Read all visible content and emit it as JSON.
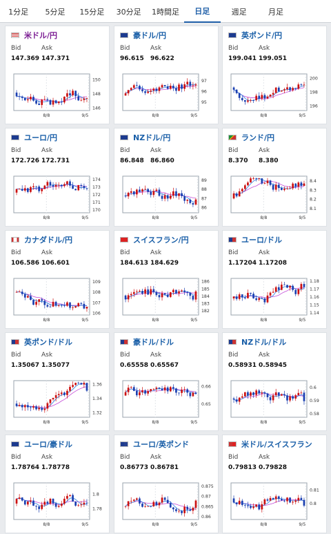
{
  "tabs": [
    "1分足",
    "5分足",
    "15分足",
    "30分足",
    "1時間足",
    "日足",
    "週足",
    "月足"
  ],
  "active_tab": 5,
  "labels": {
    "bid": "Bid",
    "ask": "Ask"
  },
  "colors": {
    "up": "#cc1111",
    "down": "#1b3fb0",
    "ma_fast": "#2a7de1",
    "ma_slow": "#c44bd8",
    "accent": "#1a5fa8",
    "highlight": "#7b1d93"
  },
  "cards": [
    {
      "name": "米ドル/円",
      "flag": "us-flag",
      "bid": "147.369",
      "ask": "147.371",
      "highlight": true,
      "chart_data": {
        "type": "candlestick",
        "y_ticks": [
          "150",
          "148",
          "146"
        ],
        "y_values": [
          150,
          148,
          146
        ],
        "ylim": [
          145.6,
          150.8
        ],
        "x_ticks": [
          "8/8",
          "9/5"
        ],
        "last": 147.37
      }
    },
    {
      "name": "豪ドル/円",
      "flag": "au-flag",
      "bid": "96.615",
      "ask": "96.622",
      "highlight": false,
      "chart_data": {
        "type": "candlestick",
        "y_ticks": [
          "97",
          "96",
          "95"
        ],
        "y_values": [
          97,
          96,
          95
        ],
        "ylim": [
          94.2,
          97.6
        ],
        "x_ticks": [
          "8/8",
          "9/5"
        ],
        "last": 96.62
      }
    },
    {
      "name": "英ポンド/円",
      "flag": "uk-flag",
      "bid": "199.041",
      "ask": "199.051",
      "highlight": false,
      "chart_data": {
        "type": "candlestick",
        "y_ticks": [
          "200",
          "198",
          "196"
        ],
        "y_values": [
          200,
          198,
          196
        ],
        "ylim": [
          195.3,
          200.6
        ],
        "x_ticks": [
          "8/8",
          "9/5"
        ],
        "last": 199.05
      }
    },
    {
      "name": "ユーロ/円",
      "flag": "eu-flag",
      "bid": "172.726",
      "ask": "172.731",
      "highlight": false,
      "chart_data": {
        "type": "candlestick",
        "y_ticks": [
          "174",
          "173",
          "172",
          "171",
          "170"
        ],
        "y_values": [
          174,
          173,
          172,
          171,
          170
        ],
        "ylim": [
          169.6,
          174.4
        ],
        "x_ticks": [
          "8/8",
          "9/5"
        ],
        "last": 172.73
      }
    },
    {
      "name": "NZドル/円",
      "flag": "nz-flag",
      "bid": "86.848",
      "ask": "86.860",
      "highlight": false,
      "chart_data": {
        "type": "candlestick",
        "y_ticks": [
          "89",
          "88",
          "87",
          "86"
        ],
        "y_values": [
          89,
          88,
          87,
          86
        ],
        "ylim": [
          85.4,
          89.4
        ],
        "x_ticks": [
          "8/8",
          "9/5"
        ],
        "last": 86.85
      }
    },
    {
      "name": "ランド/円",
      "flag": "za-flag",
      "bid": "8.370",
      "ask": "8.380",
      "highlight": false,
      "chart_data": {
        "type": "candlestick",
        "y_ticks": [
          "8.4",
          "8.3",
          "8.2",
          "8.1"
        ],
        "y_values": [
          8.4,
          8.3,
          8.2,
          8.1
        ],
        "ylim": [
          8.05,
          8.45
        ],
        "x_ticks": [
          "8/8",
          "9/5"
        ],
        "last": 8.37
      }
    },
    {
      "name": "カナダドル/円",
      "flag": "ca-flag",
      "bid": "106.586",
      "ask": "106.601",
      "highlight": false,
      "chart_data": {
        "type": "candlestick",
        "y_ticks": [
          "109",
          "108",
          "107",
          "106"
        ],
        "y_values": [
          109,
          108,
          107,
          106
        ],
        "ylim": [
          105.8,
          109.3
        ],
        "x_ticks": [
          "8/8",
          "9/5"
        ],
        "last": 106.59
      }
    },
    {
      "name": "スイスフラン/円",
      "flag": "ch-flag",
      "bid": "184.613",
      "ask": "184.629",
      "highlight": false,
      "chart_data": {
        "type": "candlestick",
        "y_ticks": [
          "186",
          "185",
          "184",
          "183",
          "182"
        ],
        "y_values": [
          186,
          185,
          184,
          183,
          182
        ],
        "ylim": [
          181.4,
          186.4
        ],
        "x_ticks": [
          "8/8",
          "9/5"
        ],
        "last": 184.62
      }
    },
    {
      "name": "ユーロ/ドル",
      "flag": "eu-us-flag",
      "bid": "1.17204",
      "ask": "1.17208",
      "highlight": false,
      "chart_data": {
        "type": "candlestick",
        "y_ticks": [
          "1.18",
          "1.17",
          "1.16",
          "1.15",
          "1.14"
        ],
        "y_values": [
          1.18,
          1.17,
          1.16,
          1.15,
          1.14
        ],
        "ylim": [
          1.137,
          1.183
        ],
        "x_ticks": [
          "8/8",
          "9/5"
        ],
        "last": 1.172
      }
    },
    {
      "name": "英ポンド/ドル",
      "flag": "uk-us-flag",
      "bid": "1.35067",
      "ask": "1.35077",
      "highlight": false,
      "chart_data": {
        "type": "candlestick",
        "y_ticks": [
          "1.36",
          "1.34",
          "1.32"
        ],
        "y_values": [
          1.36,
          1.34,
          1.32
        ],
        "ylim": [
          1.313,
          1.365
        ],
        "x_ticks": [
          "8/8",
          "9/5"
        ],
        "last": 1.3507
      }
    },
    {
      "name": "豪ドル/ドル",
      "flag": "au-us-flag",
      "bid": "0.65558",
      "ask": "0.65567",
      "highlight": false,
      "chart_data": {
        "type": "candlestick",
        "y_ticks": [
          "0.66",
          "0.65"
        ],
        "y_values": [
          0.66,
          0.65
        ],
        "ylim": [
          0.6425,
          0.663
        ],
        "x_ticks": [
          "8/8",
          "9/5"
        ],
        "last": 0.6556
      }
    },
    {
      "name": "NZドル/ドル",
      "flag": "nz-us-flag",
      "bid": "0.58931",
      "ask": "0.58945",
      "highlight": false,
      "chart_data": {
        "type": "candlestick",
        "y_ticks": [
          "0.6",
          "0.59",
          "0.58"
        ],
        "y_values": [
          0.6,
          0.59,
          0.58
        ],
        "ylim": [
          0.577,
          0.605
        ],
        "x_ticks": [
          "8/8",
          "9/5"
        ],
        "last": 0.5893
      }
    },
    {
      "name": "ユーロ/豪ドル",
      "flag": "eu-au-flag",
      "bid": "1.78764",
      "ask": "1.78778",
      "highlight": false,
      "chart_data": {
        "type": "candlestick",
        "y_ticks": [
          "1.8",
          "1.78"
        ],
        "y_values": [
          1.8,
          1.78
        ],
        "ylim": [
          1.765,
          1.815
        ],
        "x_ticks": [
          "8/8",
          "9/5"
        ],
        "last": 1.7877
      }
    },
    {
      "name": "ユーロ/英ポンド",
      "flag": "eu-uk-flag",
      "bid": "0.86773",
      "ask": "0.86781",
      "highlight": false,
      "chart_data": {
        "type": "candlestick",
        "y_ticks": [
          "0.875",
          "0.87",
          "0.865",
          "0.86"
        ],
        "y_values": [
          0.875,
          0.87,
          0.865,
          0.86
        ],
        "ylim": [
          0.8585,
          0.8765
        ],
        "x_ticks": [
          "8/8",
          "9/5"
        ],
        "last": 0.8678
      }
    },
    {
      "name": "米ドル/スイスフラン",
      "flag": "us-ch-flag",
      "bid": "0.79813",
      "ask": "0.79828",
      "highlight": false,
      "chart_data": {
        "type": "candlestick",
        "y_ticks": [
          "0.81",
          "0.8"
        ],
        "y_values": [
          0.81,
          0.8
        ],
        "ylim": [
          0.788,
          0.815
        ],
        "x_ticks": [
          "8/8",
          "9/5"
        ],
        "last": 0.7982
      }
    }
  ]
}
